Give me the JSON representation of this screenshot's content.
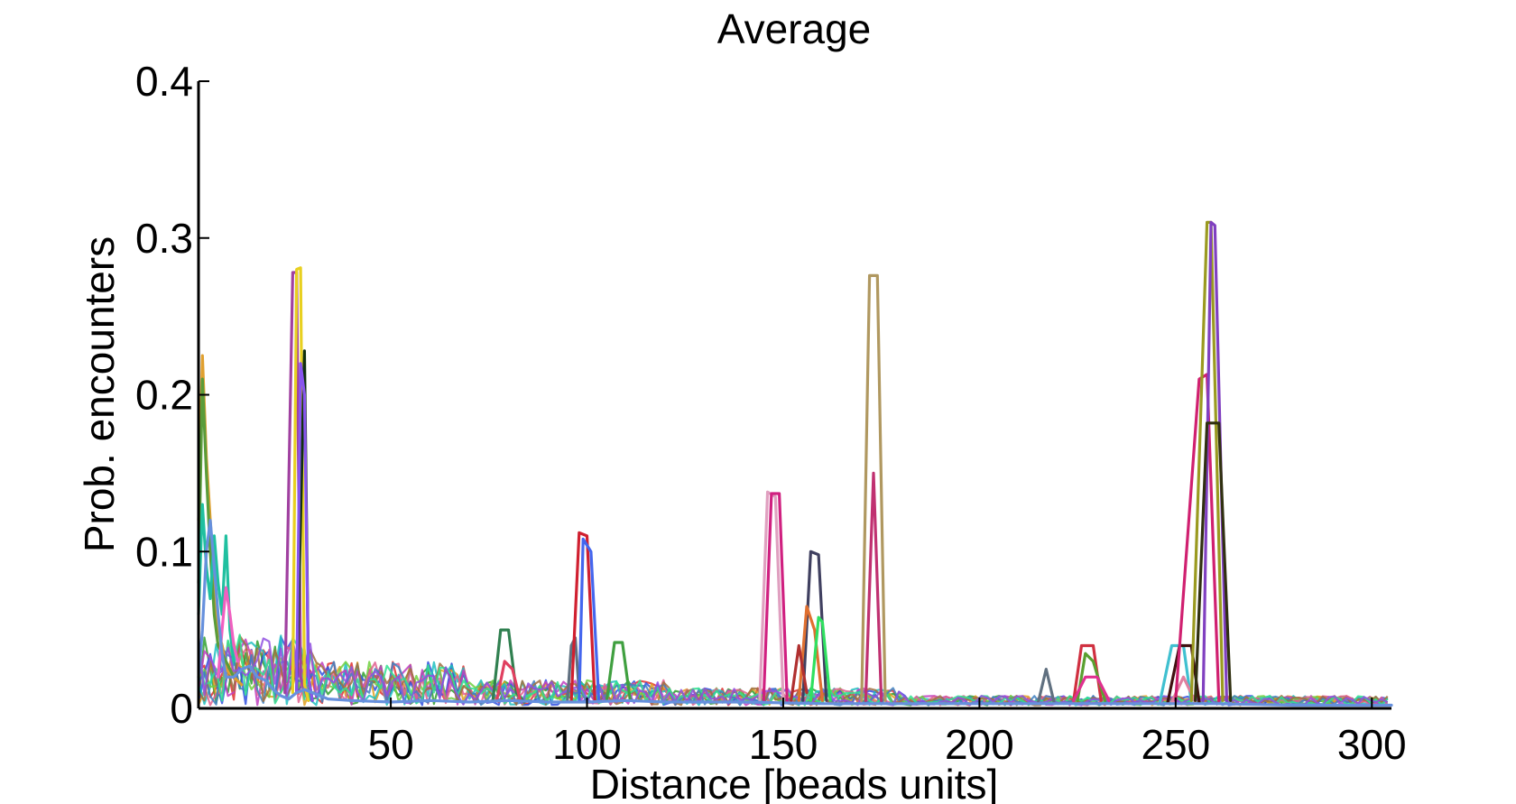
{
  "chart_data": {
    "type": "line",
    "title": "Average",
    "xlabel": "Distance [beads units]",
    "ylabel": "Prob. encounters",
    "xlim": [
      1,
      305
    ],
    "ylim": [
      0,
      0.4
    ],
    "xticks": [
      50,
      100,
      150,
      200,
      250,
      300
    ],
    "yticks": [
      0,
      0.1,
      0.2,
      0.3,
      0.4
    ],
    "yticklabels": [
      "0",
      "0.1",
      "0.2",
      "0.3",
      "0.4"
    ],
    "grid": false,
    "legend": "none",
    "series": [
      {
        "color": "#e0a030",
        "x": [
          1,
          2,
          3,
          4,
          5,
          6,
          7,
          8,
          10,
          12
        ],
        "y": [
          0.12,
          0.225,
          0.16,
          0.12,
          0.08,
          0.05,
          0.04,
          0.025,
          0.02,
          0.015
        ]
      },
      {
        "color": "#5a9c3a",
        "x": [
          1,
          2,
          3,
          4,
          5,
          6,
          8,
          10
        ],
        "y": [
          0.08,
          0.21,
          0.15,
          0.1,
          0.06,
          0.04,
          0.03,
          0.02
        ]
      },
      {
        "color": "#20c0a0",
        "x": [
          1,
          2,
          3,
          4,
          5,
          6,
          7,
          8,
          9,
          10
        ],
        "y": [
          0.06,
          0.13,
          0.09,
          0.07,
          0.11,
          0.08,
          0.06,
          0.11,
          0.05,
          0.03
        ]
      },
      {
        "color": "#f060c0",
        "x": [
          6,
          7,
          8,
          9,
          10,
          11
        ],
        "y": [
          0.02,
          0.05,
          0.077,
          0.06,
          0.04,
          0.03
        ]
      },
      {
        "color": "#a040a0",
        "x": [
          23,
          25,
          26,
          27,
          29
        ],
        "y": [
          0.01,
          0.278,
          0.278,
          0.02,
          0.005
        ]
      },
      {
        "color": "#e8d020",
        "x": [
          25,
          26,
          27,
          28,
          29
        ],
        "y": [
          0.01,
          0.28,
          0.281,
          0.015,
          0.005
        ]
      },
      {
        "color": "#103010",
        "x": [
          26,
          28,
          29,
          30
        ],
        "y": [
          0.01,
          0.228,
          0.02,
          0.005
        ]
      },
      {
        "color": "#8855ee",
        "x": [
          26,
          27,
          28,
          29,
          30
        ],
        "y": [
          0.01,
          0.22,
          0.2,
          0.02,
          0.005
        ]
      },
      {
        "color": "#308050",
        "x": [
          76,
          78,
          80,
          82,
          84
        ],
        "y": [
          0.005,
          0.05,
          0.05,
          0.01,
          0.004
        ]
      },
      {
        "color": "#e04060",
        "x": [
          77,
          79,
          81,
          83
        ],
        "y": [
          0.005,
          0.03,
          0.025,
          0.005
        ]
      },
      {
        "color": "#607080",
        "x": [
          95,
          96,
          97,
          98
        ],
        "y": [
          0.005,
          0.04,
          0.045,
          0.01
        ]
      },
      {
        "color": "#d02030",
        "x": [
          96,
          98,
          100,
          102
        ],
        "y": [
          0.005,
          0.112,
          0.11,
          0.005
        ]
      },
      {
        "color": "#4466ee",
        "x": [
          98,
          99,
          101,
          103
        ],
        "y": [
          0.005,
          0.108,
          0.1,
          0.005
        ]
      },
      {
        "color": "#40a040",
        "x": [
          105,
          107,
          109,
          111
        ],
        "y": [
          0.005,
          0.042,
          0.042,
          0.005
        ]
      },
      {
        "color": "#e0a0c0",
        "x": [
          144,
          146,
          148,
          150
        ],
        "y": [
          0.005,
          0.138,
          0.135,
          0.005
        ]
      },
      {
        "color": "#d02080",
        "x": [
          145,
          147,
          149,
          151
        ],
        "y": [
          0.005,
          0.137,
          0.137,
          0.005
        ]
      },
      {
        "color": "#404060",
        "x": [
          155,
          157,
          159,
          161
        ],
        "y": [
          0.005,
          0.1,
          0.098,
          0.005
        ]
      },
      {
        "color": "#e07030",
        "x": [
          154,
          156,
          158,
          160
        ],
        "y": [
          0.005,
          0.065,
          0.05,
          0.005
        ]
      },
      {
        "color": "#30e060",
        "x": [
          157,
          159,
          160,
          162
        ],
        "y": [
          0.005,
          0.058,
          0.055,
          0.005
        ]
      },
      {
        "color": "#b03030",
        "x": [
          152,
          154,
          156
        ],
        "y": [
          0.005,
          0.04,
          0.01
        ]
      },
      {
        "color": "#b09860",
        "x": [
          170,
          172,
          174,
          176
        ],
        "y": [
          0.005,
          0.276,
          0.276,
          0.005
        ]
      },
      {
        "color": "#c03070",
        "x": [
          171,
          173,
          175
        ],
        "y": [
          0.005,
          0.15,
          0.005
        ]
      },
      {
        "color": "#607080",
        "x": [
          215,
          217,
          219
        ],
        "y": [
          0.004,
          0.025,
          0.004
        ]
      },
      {
        "color": "#d03040",
        "x": [
          224,
          226,
          229,
          231
        ],
        "y": [
          0.005,
          0.04,
          0.04,
          0.005
        ]
      },
      {
        "color": "#5aa030",
        "x": [
          225,
          227,
          229,
          232
        ],
        "y": [
          0.005,
          0.035,
          0.03,
          0.005
        ]
      },
      {
        "color": "#e03090",
        "x": [
          224,
          227,
          230,
          233
        ],
        "y": [
          0.005,
          0.02,
          0.02,
          0.005
        ]
      },
      {
        "color": "#40c0d0",
        "x": [
          246,
          249,
          252,
          254
        ],
        "y": [
          0.004,
          0.04,
          0.04,
          0.004
        ]
      },
      {
        "color": "#401010",
        "x": [
          248,
          251,
          254,
          256
        ],
        "y": [
          0.004,
          0.04,
          0.04,
          0.004
        ]
      },
      {
        "color": "#e080a0",
        "x": [
          249,
          252,
          255
        ],
        "y": [
          0.004,
          0.02,
          0.004
        ]
      },
      {
        "color": "#d02070",
        "x": [
          250,
          256,
          258,
          261
        ],
        "y": [
          0.005,
          0.21,
          0.213,
          0.005
        ]
      },
      {
        "color": "#9a9a20",
        "x": [
          254,
          258,
          259,
          262
        ],
        "y": [
          0.005,
          0.31,
          0.31,
          0.005
        ]
      },
      {
        "color": "#8040c0",
        "x": [
          257,
          259,
          260,
          263
        ],
        "y": [
          0.005,
          0.31,
          0.308,
          0.005
        ]
      },
      {
        "color": "#303010",
        "x": [
          255,
          258,
          261,
          264
        ],
        "y": [
          0.005,
          0.182,
          0.182,
          0.005
        ]
      },
      {
        "color": "#6690dd",
        "x": [
          1,
          2,
          3,
          4,
          5,
          6,
          7,
          8,
          10,
          12,
          14,
          16,
          18,
          20,
          22,
          24,
          26,
          28,
          30,
          34,
          40,
          50,
          60,
          70,
          80,
          90,
          100,
          110,
          120,
          140,
          160,
          180,
          200,
          220,
          240,
          260,
          280,
          305
        ],
        "y": [
          0.02,
          0.05,
          0.1,
          0.12,
          0.09,
          0.06,
          0.035,
          0.02,
          0.02,
          0.025,
          0.027,
          0.02,
          0.018,
          0.012,
          0.008,
          0.006,
          0.01,
          0.012,
          0.01,
          0.006,
          0.005,
          0.004,
          0.005,
          0.004,
          0.005,
          0.004,
          0.004,
          0.005,
          0.004,
          0.004,
          0.003,
          0.003,
          0.003,
          0.003,
          0.003,
          0.003,
          0.002,
          0.002
        ]
      }
    ]
  }
}
